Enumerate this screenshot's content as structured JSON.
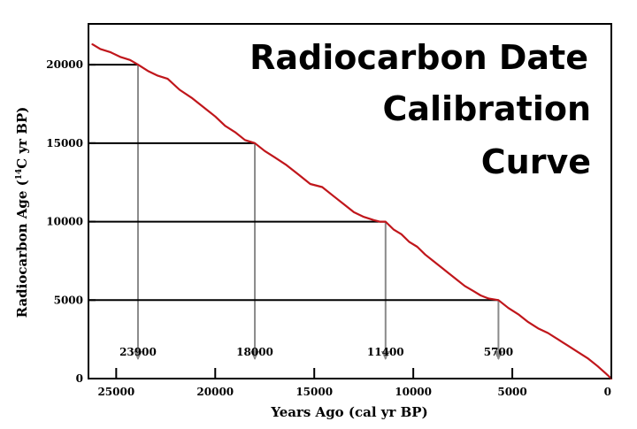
{
  "chart_data": {
    "type": "line",
    "title_lines": [
      "Radiocarbon Date",
      "Calibration",
      "Curve"
    ],
    "xlabel": "Years Ago (cal yr BP)",
    "ylabel_main": "Radiocarbon Age (",
    "ylabel_sup": "14",
    "ylabel_rest": "C yr BP)",
    "x_axis_reversed": true,
    "xlim": [
      26400,
      0
    ],
    "ylim": [
      0,
      22600
    ],
    "x_ticks": [
      25000,
      20000,
      15000,
      10000,
      5000,
      0
    ],
    "x_tick_labels": [
      "25000",
      "20000",
      "15000",
      "10000",
      "5000",
      "0"
    ],
    "y_ticks": [
      0,
      5000,
      10000,
      15000,
      20000
    ],
    "y_tick_labels": [
      "0",
      "5000",
      "10000",
      "15000",
      "20000"
    ],
    "grid": false,
    "legend": "none",
    "series": [
      {
        "color": "#c0161b",
        "x": [
          26200,
          25800,
          25300,
          24800,
          24300,
          23900,
          23400,
          22900,
          22400,
          21800,
          21200,
          20600,
          20000,
          19500,
          19000,
          18500,
          18000,
          17500,
          17000,
          16400,
          15800,
          15200,
          14600,
          14000,
          13500,
          13000,
          12500,
          12000,
          11700,
          11400,
          11000,
          10600,
          10200,
          9800,
          9400,
          9000,
          8600,
          8200,
          7800,
          7400,
          7000,
          6600,
          6200,
          5700,
          5200,
          4700,
          4200,
          3700,
          3200,
          2700,
          2200,
          1700,
          1200,
          700,
          300,
          0
        ],
        "y": [
          21300,
          21000,
          20800,
          20500,
          20300,
          20000,
          19600,
          19300,
          19100,
          18400,
          17900,
          17300,
          16700,
          16100,
          15700,
          15200,
          15000,
          14500,
          14100,
          13600,
          13000,
          12400,
          12200,
          11600,
          11100,
          10600,
          10300,
          10100,
          10000,
          10000,
          9500,
          9200,
          8700,
          8400,
          7900,
          7500,
          7100,
          6700,
          6300,
          5900,
          5600,
          5300,
          5100,
          5000,
          4500,
          4100,
          3600,
          3200,
          2900,
          2500,
          2100,
          1700,
          1300,
          800,
          350,
          0
        ]
      }
    ],
    "annotations": [
      {
        "x": 23900,
        "y": 20000,
        "label": "23900"
      },
      {
        "x": 18000,
        "y": 15000,
        "label": "18000"
      },
      {
        "x": 11400,
        "y": 10000,
        "label": "11400"
      },
      {
        "x": 5700,
        "y": 5000,
        "label": "5700"
      }
    ],
    "colors": {
      "curve": "#c0161b",
      "guide_horizontal": "#000000",
      "guide_arrow": "#8a8a8a",
      "axes": "#000000"
    }
  }
}
